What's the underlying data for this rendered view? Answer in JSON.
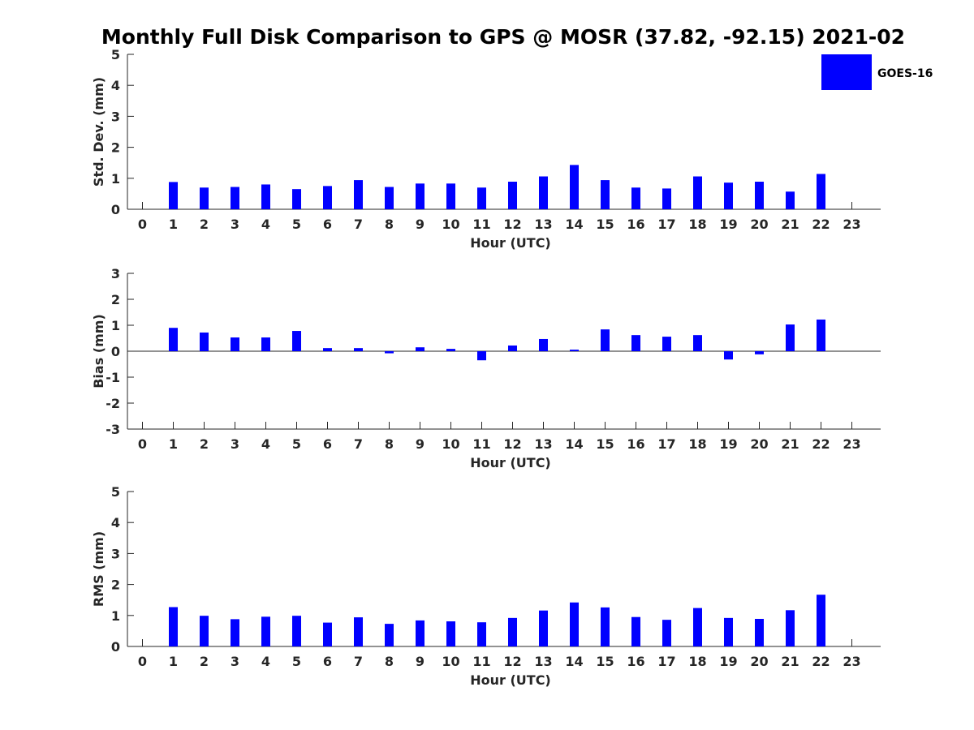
{
  "title": "Monthly Full Disk Comparison to GPS @ MOSR (37.82, -92.15) 2021-02",
  "legend": {
    "label": "GOES-16",
    "color": "#0000ff",
    "placement": "top-right"
  },
  "chart_data": [
    {
      "type": "bar",
      "name": "std-dev",
      "ylabel": "Std. Dev. (mm)",
      "xlabel": "Hour (UTC)",
      "ylim": [
        0,
        5
      ],
      "yticks": [
        "0",
        "1",
        "2",
        "3",
        "4",
        "5"
      ],
      "categories": [
        "0",
        "1",
        "2",
        "3",
        "4",
        "5",
        "6",
        "7",
        "8",
        "9",
        "10",
        "11",
        "12",
        "13",
        "14",
        "15",
        "16",
        "17",
        "18",
        "19",
        "20",
        "21",
        "22",
        "23"
      ],
      "series": [
        {
          "name": "GOES-16",
          "values": [
            null,
            0.88,
            0.7,
            0.72,
            0.8,
            0.65,
            0.75,
            0.94,
            0.72,
            0.83,
            0.83,
            0.7,
            0.89,
            1.06,
            1.43,
            0.94,
            0.7,
            0.67,
            1.06,
            0.86,
            0.89,
            0.57,
            1.14,
            null
          ]
        }
      ]
    },
    {
      "type": "bar",
      "name": "bias",
      "ylabel": "Bias (mm)",
      "xlabel": "Hour (UTC)",
      "ylim": [
        -3,
        3
      ],
      "yticks": [
        "-3",
        "-2",
        "-1",
        "0",
        "1",
        "2",
        "3"
      ],
      "zero_line": true,
      "categories": [
        "0",
        "1",
        "2",
        "3",
        "4",
        "5",
        "6",
        "7",
        "8",
        "9",
        "10",
        "11",
        "12",
        "13",
        "14",
        "15",
        "16",
        "17",
        "18",
        "19",
        "20",
        "21",
        "22",
        "23"
      ],
      "series": [
        {
          "name": "GOES-16",
          "values": [
            null,
            0.9,
            0.72,
            0.53,
            0.53,
            0.78,
            0.12,
            0.12,
            -0.08,
            0.15,
            0.09,
            -0.35,
            0.22,
            0.47,
            0.06,
            0.84,
            0.62,
            0.56,
            0.62,
            -0.32,
            -0.12,
            1.03,
            1.22,
            null
          ]
        }
      ]
    },
    {
      "type": "bar",
      "name": "rms",
      "ylabel": "RMS (mm)",
      "xlabel": "Hour (UTC)",
      "ylim": [
        0,
        5
      ],
      "yticks": [
        "0",
        "1",
        "2",
        "3",
        "4",
        "5"
      ],
      "categories": [
        "0",
        "1",
        "2",
        "3",
        "4",
        "5",
        "6",
        "7",
        "8",
        "9",
        "10",
        "11",
        "12",
        "13",
        "14",
        "15",
        "16",
        "17",
        "18",
        "19",
        "20",
        "21",
        "22",
        "23"
      ],
      "series": [
        {
          "name": "GOES-16",
          "values": [
            null,
            1.27,
            0.99,
            0.88,
            0.96,
            0.99,
            0.77,
            0.94,
            0.73,
            0.84,
            0.81,
            0.78,
            0.92,
            1.16,
            1.42,
            1.26,
            0.95,
            0.86,
            1.24,
            0.92,
            0.89,
            1.17,
            1.67,
            null
          ]
        }
      ]
    }
  ]
}
